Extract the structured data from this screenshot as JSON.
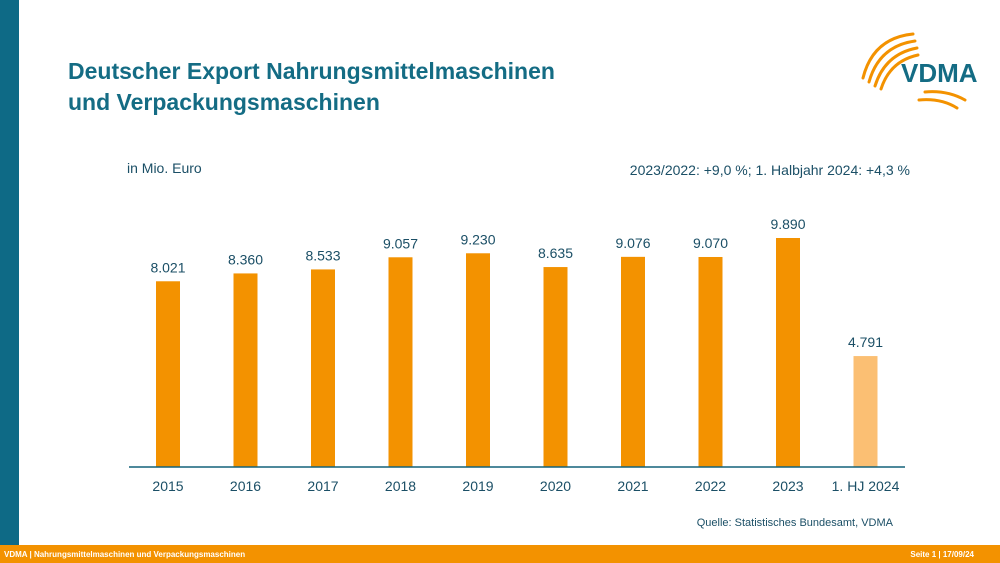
{
  "title": {
    "line1": "Deutscher Export Nahrungsmittelmaschinen",
    "line2": "und Verpackungsmaschinen"
  },
  "logo": {
    "text": "VDMA",
    "icon": "vdma-arc-logo-icon"
  },
  "unit_label": "in Mio. Euro",
  "growth_note": "2023/2022: +9,0 %; 1. Halbjahr 2024: +4,3 %",
  "source": "Quelle: Statistisches Bundesamt, VDMA",
  "footer": {
    "left": "VDMA | Nahrungsmittelmaschinen und Verpackungsmaschinen",
    "right": "Seite 1 | 17/09/24"
  },
  "colors": {
    "accent": "#f39200",
    "partial": "#fbbf73",
    "brand": "#146c84",
    "axis": "#14627a"
  },
  "chart_data": {
    "type": "bar",
    "categories": [
      "2015",
      "2016",
      "2017",
      "2018",
      "2019",
      "2020",
      "2021",
      "2022",
      "2023",
      "1. HJ 2024"
    ],
    "values": [
      8021,
      8360,
      8533,
      9057,
      9230,
      8635,
      9076,
      9070,
      9890,
      4791
    ],
    "value_labels": [
      "8.021",
      "8.360",
      "8.533",
      "9.057",
      "9.230",
      "8.635",
      "9.076",
      "9.070",
      "9.890",
      "4.791"
    ],
    "partial_categories": [
      "1. HJ 2024"
    ],
    "ylim": [
      0,
      9890
    ],
    "grid": false,
    "legend": "none"
  }
}
